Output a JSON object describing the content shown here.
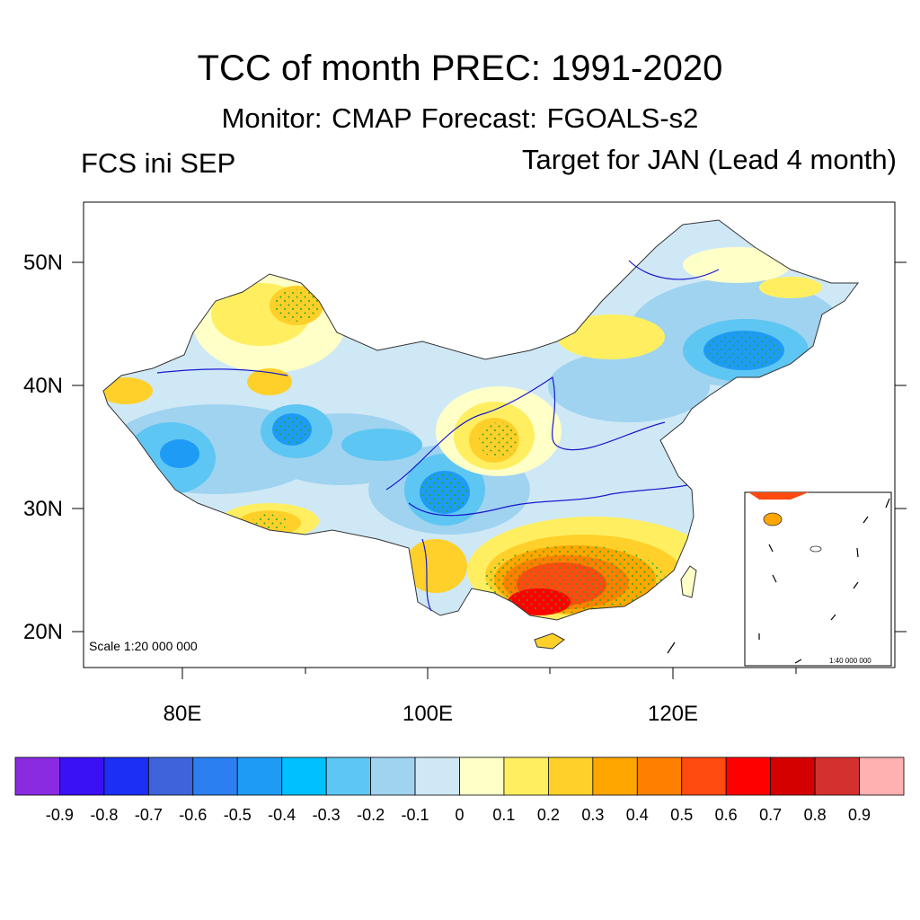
{
  "title": "TCC of month PREC: 1991-2020",
  "subtitle": "Monitor: CMAP   Forecast: FGOALS-s2",
  "left_label": "FCS ini SEP",
  "right_label": "Target for JAN (Lead 4 month)",
  "map": {
    "lat_labels": [
      "50N",
      "40N",
      "30N",
      "20N"
    ],
    "lon_labels": [
      "80E",
      "100E",
      "120E"
    ],
    "scale_main": "Scale 1:20 000 000",
    "scale_inset": "1:40 000 000"
  },
  "colorbar": {
    "colors": [
      "#8a2be2",
      "#3a10f5",
      "#1c2ff5",
      "#3f63db",
      "#2b7ff0",
      "#1e9bf5",
      "#00c0ff",
      "#5ec6f2",
      "#9fd3f0",
      "#cfe8f6",
      "#ffffc8",
      "#ffef60",
      "#ffd02a",
      "#ffa600",
      "#ff8000",
      "#ff4a10",
      "#ff0000",
      "#d40000",
      "#d43030",
      "#ffb0b0"
    ],
    "labels": [
      "-0.9",
      "-0.8",
      "-0.7",
      "-0.6",
      "-0.5",
      "-0.4",
      "-0.3",
      "-0.2",
      "-0.1",
      "0",
      "0.1",
      "0.2",
      "0.3",
      "0.4",
      "0.5",
      "0.6",
      "0.7",
      "0.8",
      "0.9"
    ]
  }
}
